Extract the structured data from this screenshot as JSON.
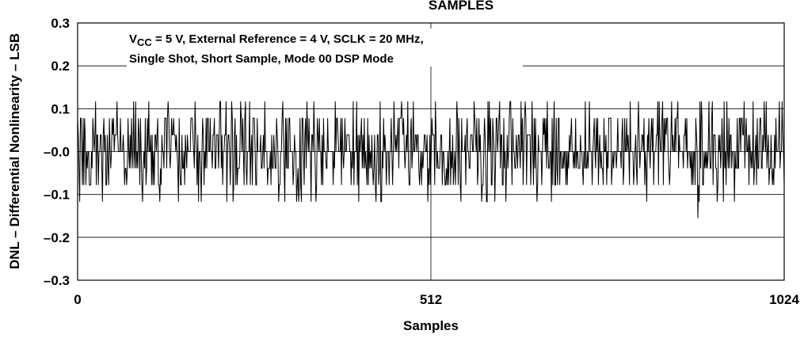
{
  "chart_data": {
    "type": "line",
    "title": "SAMPLES",
    "xlabel": "Samples",
    "ylabel": "DNL – Differential Nonlinearity – LSB",
    "xlim": [
      0,
      1024
    ],
    "ylim": [
      -0.3,
      0.3
    ],
    "x_ticks": [
      {
        "value": 0,
        "label": "0"
      },
      {
        "value": 512,
        "label": "512"
      },
      {
        "value": 1024,
        "label": "1024"
      }
    ],
    "y_ticks": [
      {
        "value": 0.3,
        "label": "0.3"
      },
      {
        "value": 0.2,
        "label": "0.2"
      },
      {
        "value": 0.1,
        "label": "0.1"
      },
      {
        "value": 0.0,
        "label": "–0.0"
      },
      {
        "value": -0.1,
        "label": "–0.1"
      },
      {
        "value": -0.2,
        "label": "–0.2"
      },
      {
        "value": -0.3,
        "label": "–0.3"
      }
    ],
    "grid": true,
    "annotation": {
      "line1_prefix": "V",
      "line1_sub": "CC",
      "line1_rest": " = 5 V, External Reference = 4 V, SCLK = 20 MHz,",
      "line2": "Single Shot, Short Sample, Mode 00 DSP Mode"
    },
    "series": [
      {
        "line_color": "#000000",
        "sample_count": 1024,
        "levels": [
          -0.155,
          -0.117,
          -0.078,
          -0.039,
          0,
          0.039,
          0.078,
          0.117
        ],
        "values_summary": "DNL alternates between quantized levels roughly from -0.155 to 0.117 LSB around zero across all 1024 samples"
      }
    ]
  }
}
